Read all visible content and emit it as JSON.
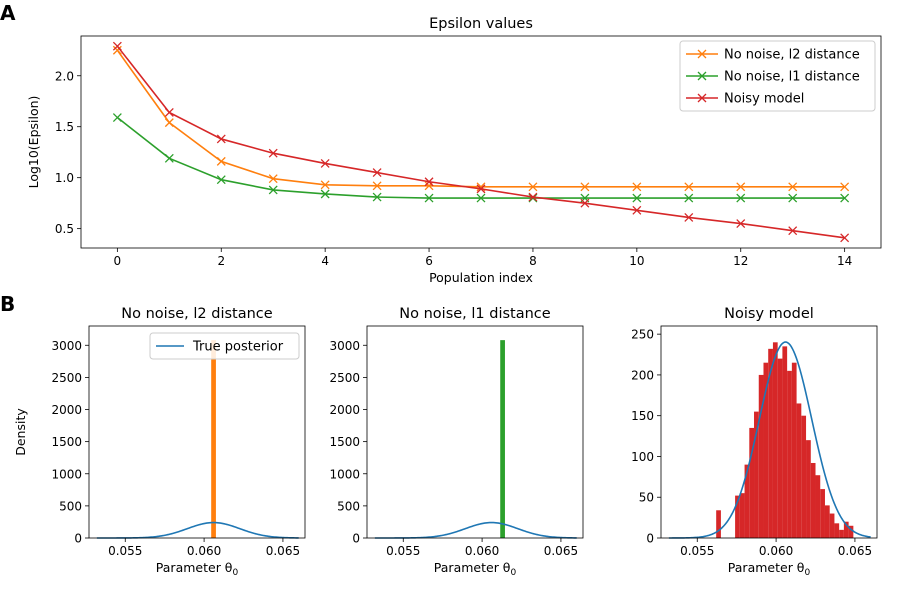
{
  "panel_labels": [
    "A",
    "B"
  ],
  "chart_data": [
    {
      "type": "line",
      "title": "Epsilon values",
      "xlabel": "Population index",
      "ylabel": "Log10(Epsilon)",
      "xlim": [
        -0.7,
        14.7
      ],
      "ylim": [
        0.31,
        2.39
      ],
      "xticks": [
        0,
        2,
        4,
        6,
        8,
        10,
        12,
        14
      ],
      "xtick_labels": [
        "0",
        "2",
        "4",
        "6",
        "8",
        "10",
        "12",
        "14"
      ],
      "yticks": [
        0.5,
        1.0,
        1.5,
        2.0
      ],
      "ytick_labels": [
        "0.5",
        "1.0",
        "1.5",
        "2.0"
      ],
      "x": [
        0,
        1,
        2,
        3,
        4,
        5,
        6,
        7,
        8,
        9,
        10,
        11,
        12,
        13,
        14
      ],
      "marker": "x",
      "legend_position": "top-right",
      "series": [
        {
          "name": "No noise, l2 distance",
          "color": "#ff7f0e",
          "values": [
            2.25,
            1.54,
            1.16,
            0.99,
            0.93,
            0.92,
            0.92,
            0.91,
            0.91,
            0.91,
            0.91,
            0.91,
            0.91,
            0.91,
            0.91
          ]
        },
        {
          "name": "No noise, l1 distance",
          "color": "#2ca02c",
          "values": [
            1.59,
            1.19,
            0.98,
            0.88,
            0.84,
            0.81,
            0.8,
            0.8,
            0.8,
            0.8,
            0.8,
            0.8,
            0.8,
            0.8,
            0.8
          ]
        },
        {
          "name": "Noisy model",
          "color": "#d62728",
          "values": [
            2.29,
            1.64,
            1.38,
            1.24,
            1.14,
            1.05,
            0.96,
            0.89,
            0.81,
            0.75,
            0.68,
            0.61,
            0.55,
            0.48,
            0.41
          ]
        }
      ]
    },
    {
      "type": "histogram",
      "title": "No noise, l2 distance",
      "xlabel": "Parameter θ",
      "xlabel_subscript": "0",
      "ylabel": "Density",
      "xlim": [
        0.0527,
        0.0664
      ],
      "ylim": [
        0,
        3300
      ],
      "xticks": [
        0.055,
        0.06,
        0.065
      ],
      "xtick_labels": [
        "0.055",
        "0.060",
        "0.065"
      ],
      "yticks": [
        0,
        500,
        1000,
        1500,
        2000,
        2500,
        3000
      ],
      "ytick_labels": [
        "0",
        "500",
        "1000",
        "1500",
        "2000",
        "2500",
        "3000"
      ],
      "hist_color": "#ff7f0e",
      "bars": [
        {
          "x0": 0.06045,
          "x1": 0.06075,
          "height": 3080
        }
      ],
      "curve": {
        "name": "True posterior",
        "color": "#1f77b4",
        "mu": 0.0606,
        "sigma": 0.00166,
        "x_range": [
          0.0532,
          0.066
        ]
      },
      "legend": [
        "True posterior"
      ],
      "legend_position": "top-right"
    },
    {
      "type": "histogram",
      "title": "No noise, l1 distance",
      "xlabel": "Parameter θ",
      "xlabel_subscript": "0",
      "xlim": [
        0.0527,
        0.0664
      ],
      "ylim": [
        0,
        3300
      ],
      "xticks": [
        0.055,
        0.06,
        0.065
      ],
      "xtick_labels": [
        "0.055",
        "0.060",
        "0.065"
      ],
      "yticks": [
        0,
        500,
        1000,
        1500,
        2000,
        2500,
        3000
      ],
      "ytick_labels": [
        "0",
        "500",
        "1000",
        "1500",
        "2000",
        "2500",
        "3000"
      ],
      "hist_color": "#2ca02c",
      "bars": [
        {
          "x0": 0.06115,
          "x1": 0.06145,
          "height": 3080
        }
      ],
      "curve": {
        "color": "#1f77b4",
        "mu": 0.0606,
        "sigma": 0.00166,
        "x_range": [
          0.0532,
          0.066
        ]
      }
    },
    {
      "type": "histogram",
      "title": "Noisy model",
      "xlabel": "Parameter θ",
      "xlabel_subscript": "0",
      "xlim": [
        0.0527,
        0.0664
      ],
      "ylim": [
        0,
        260
      ],
      "xticks": [
        0.055,
        0.06,
        0.065
      ],
      "xtick_labels": [
        "0.055",
        "0.060",
        "0.065"
      ],
      "yticks": [
        0,
        50,
        100,
        150,
        200,
        250
      ],
      "ytick_labels": [
        "0",
        "50",
        "100",
        "150",
        "200",
        "250"
      ],
      "hist_color": "#d62728",
      "bin_start": 0.0562,
      "bin_width": 0.0003,
      "heights": [
        34,
        0,
        0,
        0,
        52,
        55,
        90,
        135,
        155,
        200,
        215,
        232,
        240,
        220,
        235,
        205,
        215,
        165,
        150,
        120,
        92,
        77,
        60,
        40,
        30,
        18,
        10,
        20,
        15
      ],
      "curve": {
        "color": "#1f77b4",
        "mu": 0.0606,
        "sigma": 0.00166,
        "x_range": [
          0.0532,
          0.066
        ]
      }
    }
  ]
}
